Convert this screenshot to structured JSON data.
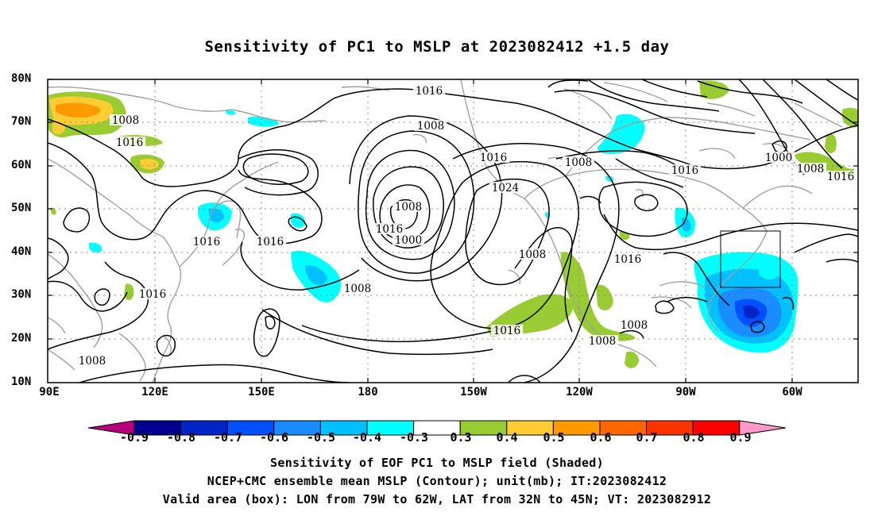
{
  "title": "Sensitivity of PC1 to MSLP at 2023082412 +1.5 day",
  "map": {
    "lat_labels": [
      "80N",
      "70N",
      "60N",
      "50N",
      "40N",
      "30N",
      "20N",
      "10N"
    ],
    "lon_labels": [
      "90E",
      "120E",
      "150E",
      "180",
      "150W",
      "120W",
      "90W",
      "60W"
    ],
    "contour_labels": [
      {
        "text": "1016"
      },
      {
        "text": "1008"
      },
      {
        "text": "1016"
      },
      {
        "text": "1008"
      },
      {
        "text": "1016"
      },
      {
        "text": "1008"
      },
      {
        "text": "1016"
      },
      {
        "text": "1016"
      },
      {
        "text": "1000"
      },
      {
        "text": "1008"
      },
      {
        "text": "1024"
      },
      {
        "text": "1008"
      },
      {
        "text": "1016"
      },
      {
        "text": "1016"
      },
      {
        "text": "1000"
      },
      {
        "text": "1016"
      },
      {
        "text": "1008"
      },
      {
        "text": "1016"
      },
      {
        "text": "1008"
      },
      {
        "text": "1016"
      },
      {
        "text": "1008"
      },
      {
        "text": "1008"
      },
      {
        "text": "1016"
      },
      {
        "text": "1008"
      }
    ],
    "valid_box": {
      "lon_from": "79W",
      "lon_to": "62W",
      "lat_from": "32N",
      "lat_to": "45N"
    }
  },
  "colorbar": {
    "labels": [
      "-0.9",
      "-0.8",
      "-0.7",
      "-0.6",
      "-0.5",
      "-0.4",
      "-0.3",
      "0.3",
      "0.4",
      "0.5",
      "0.6",
      "0.7",
      "0.8",
      "0.9"
    ],
    "colors": [
      "#b8007a",
      "#00008f",
      "#0024c8",
      "#0050ff",
      "#1a8cff",
      "#00c0ff",
      "#00ffff",
      "#ffffff",
      "#99cc33",
      "#ffcc33",
      "#ff9900",
      "#ff6600",
      "#ff3300",
      "#ff0000",
      "#ff99cc"
    ]
  },
  "captions": [
    "Sensitivity of EOF PC1 to MSLP field (Shaded)",
    "NCEP+CMC ensemble mean MSLP (Contour); unit(mb); IT:2023082412",
    "Valid area (box): LON from 79W to 62W, LAT from 32N to 45N; VT: 2023082912"
  ]
}
